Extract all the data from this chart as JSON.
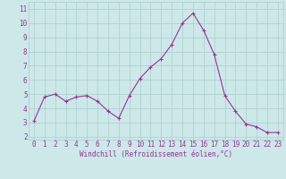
{
  "x": [
    0,
    1,
    2,
    3,
    4,
    5,
    6,
    7,
    8,
    9,
    10,
    11,
    12,
    13,
    14,
    15,
    16,
    17,
    18,
    19,
    20,
    21,
    22,
    23
  ],
  "y": [
    3.1,
    4.8,
    5.0,
    4.5,
    4.8,
    4.9,
    4.5,
    3.8,
    3.3,
    4.9,
    6.1,
    6.9,
    7.5,
    8.5,
    10.0,
    10.7,
    9.5,
    7.8,
    4.9,
    3.8,
    2.9,
    2.7,
    2.3,
    2.3
  ],
  "line_color": "#993399",
  "marker": "+",
  "marker_size": 3,
  "marker_color": "#993399",
  "background_color": "#cce8e8",
  "grid_color": "#aacece",
  "xlabel": "Windchill (Refroidissement éolien,°C)",
  "xlabel_color": "#993399",
  "xlabel_fontsize": 5.5,
  "tick_color": "#993399",
  "tick_fontsize": 5.5,
  "ylim": [
    1.8,
    11.5
  ],
  "yticks": [
    2,
    3,
    4,
    5,
    6,
    7,
    8,
    9,
    10,
    11
  ],
  "xlim": [
    -0.5,
    23.5
  ],
  "xticks": [
    0,
    1,
    2,
    3,
    4,
    5,
    6,
    7,
    8,
    9,
    10,
    11,
    12,
    13,
    14,
    15,
    16,
    17,
    18,
    19,
    20,
    21,
    22,
    23
  ],
  "line_width": 0.8
}
